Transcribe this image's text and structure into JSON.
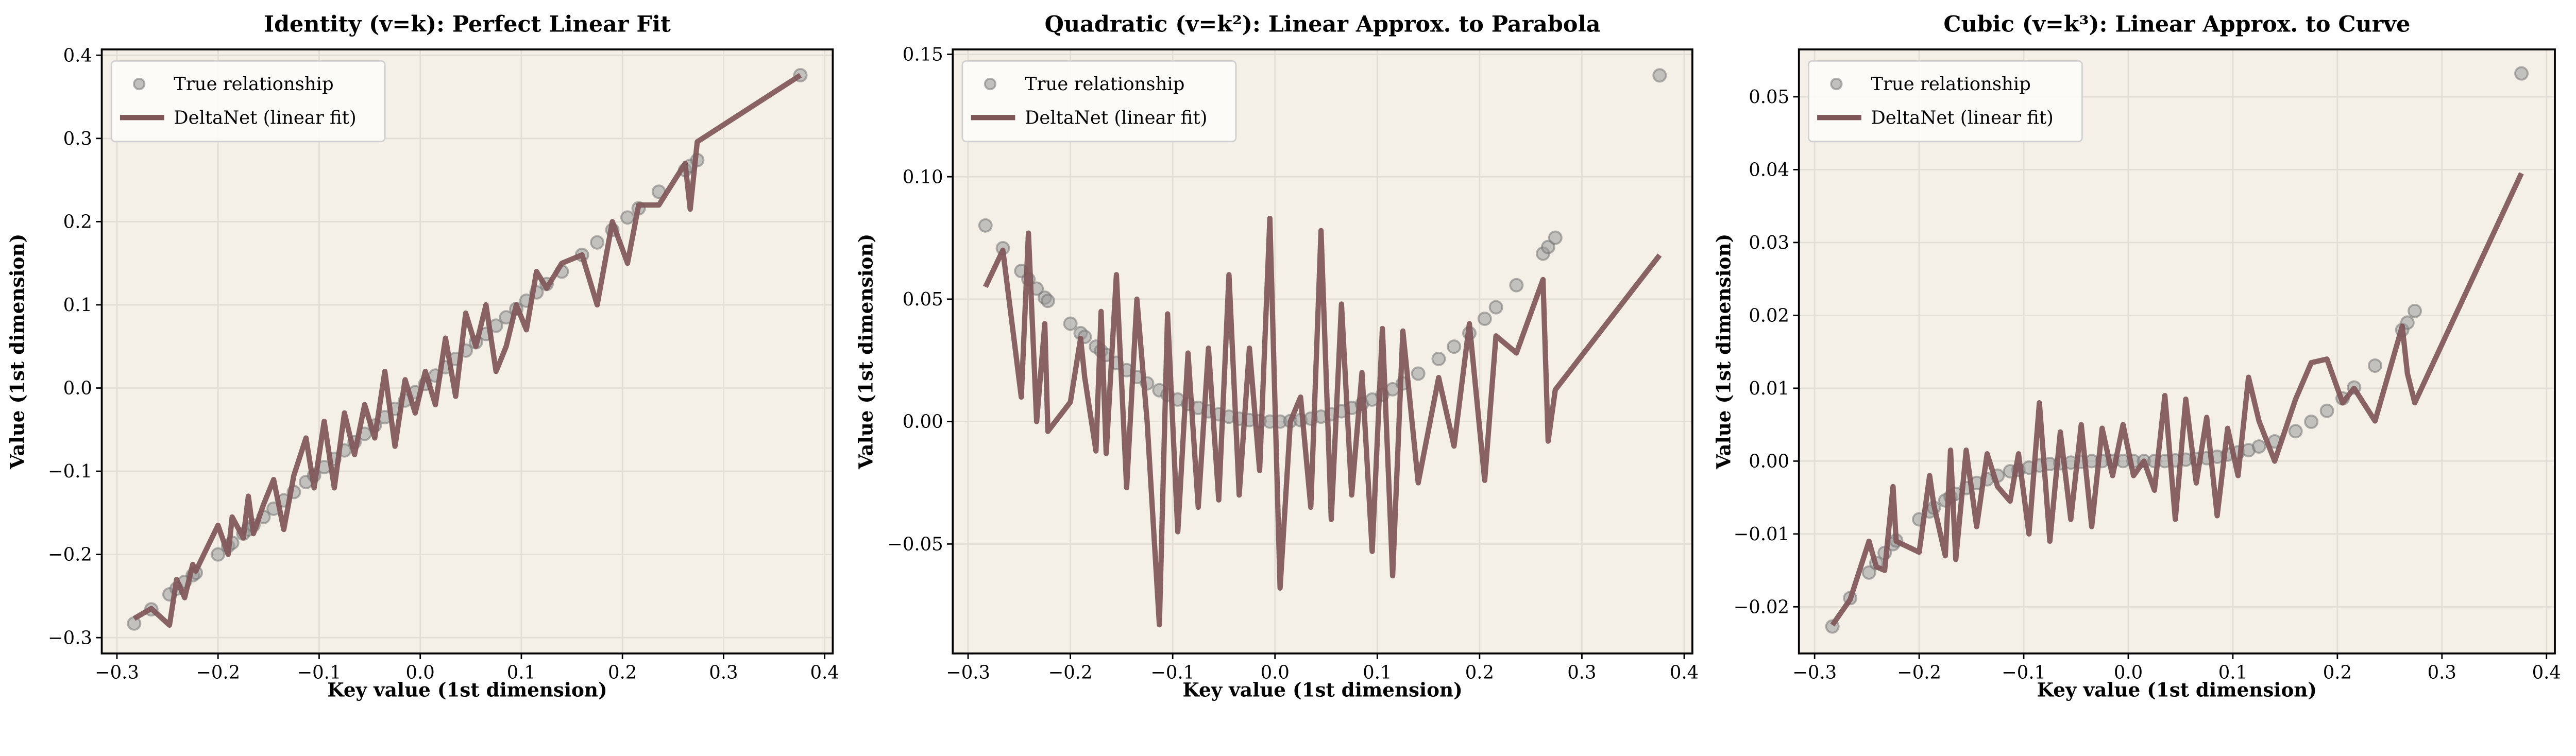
{
  "colors": {
    "line": "#7f5658",
    "points": "#9a9a9a",
    "point_edge": "#6e6e6e",
    "axes_bg": "#f4efe7",
    "grid": "#e2ddd5"
  },
  "legend": {
    "placement": "top-left",
    "scatter_label": "True relationship",
    "line_label": "DeltaNet (linear fit)"
  },
  "chart_data": [
    {
      "type": "line",
      "title": "Identity (v=k): Perfect Linear Fit",
      "xlabel": "Key value (1st dimension)",
      "ylabel": "Value (1st dimension)",
      "xlim": [
        -0.315,
        0.408
      ],
      "ylim": [
        -0.319,
        0.407
      ],
      "grid": true,
      "xticks": [
        -0.3,
        -0.2,
        -0.1,
        0.0,
        0.1,
        0.2,
        0.3,
        0.4
      ],
      "xtick_labels": [
        "−0.3",
        "−0.2",
        "−0.1",
        "0.0",
        "0.1",
        "0.2",
        "0.3",
        "0.4"
      ],
      "yticks": [
        -0.3,
        -0.2,
        -0.1,
        0.0,
        0.1,
        0.2,
        0.3,
        0.4
      ],
      "ytick_labels": [
        "−0.3",
        "−0.2",
        "−0.1",
        "0.0",
        "0.1",
        "0.2",
        "0.3",
        "0.4"
      ],
      "keys": [
        -0.283,
        -0.266,
        -0.248,
        -0.241,
        -0.233,
        -0.225,
        -0.222,
        -0.2,
        -0.19,
        -0.186,
        -0.175,
        -0.17,
        -0.165,
        -0.155,
        -0.145,
        -0.135,
        -0.125,
        -0.113,
        -0.105,
        -0.095,
        -0.085,
        -0.075,
        -0.065,
        -0.055,
        -0.045,
        -0.035,
        -0.025,
        -0.015,
        -0.005,
        0.005,
        0.015,
        0.025,
        0.035,
        0.045,
        0.055,
        0.065,
        0.075,
        0.085,
        0.095,
        0.105,
        0.115,
        0.125,
        0.14,
        0.16,
        0.175,
        0.19,
        0.205,
        0.216,
        0.236,
        0.262,
        0.267,
        0.274,
        0.376
      ],
      "series": [
        {
          "name": "True relationship",
          "kind": "scatter",
          "values": [
            -0.283,
            -0.266,
            -0.248,
            -0.241,
            -0.233,
            -0.225,
            -0.222,
            -0.2,
            -0.19,
            -0.186,
            -0.175,
            -0.17,
            -0.165,
            -0.155,
            -0.145,
            -0.135,
            -0.125,
            -0.113,
            -0.105,
            -0.095,
            -0.085,
            -0.075,
            -0.065,
            -0.055,
            -0.045,
            -0.035,
            -0.025,
            -0.015,
            -0.005,
            0.005,
            0.015,
            0.025,
            0.035,
            0.045,
            0.055,
            0.065,
            0.075,
            0.085,
            0.095,
            0.105,
            0.115,
            0.125,
            0.14,
            0.16,
            0.175,
            0.19,
            0.205,
            0.216,
            0.236,
            0.262,
            0.267,
            0.274,
            0.376
          ]
        },
        {
          "name": "DeltaNet (linear fit)",
          "kind": "line",
          "values": [
            -0.277,
            -0.265,
            -0.285,
            -0.23,
            -0.252,
            -0.212,
            -0.22,
            -0.165,
            -0.2,
            -0.155,
            -0.18,
            -0.13,
            -0.175,
            -0.14,
            -0.11,
            -0.17,
            -0.105,
            -0.06,
            -0.12,
            -0.04,
            -0.12,
            -0.03,
            -0.08,
            -0.02,
            -0.06,
            0.02,
            -0.07,
            0.01,
            -0.03,
            0.02,
            -0.02,
            0.06,
            -0.01,
            0.09,
            0.05,
            0.1,
            0.02,
            0.05,
            0.1,
            0.07,
            0.14,
            0.12,
            0.15,
            0.16,
            0.1,
            0.2,
            0.15,
            0.22,
            0.22,
            0.27,
            0.215,
            0.296,
            0.376
          ]
        }
      ]
    },
    {
      "type": "line",
      "title": "Quadratic (v=k²): Linear Approx. to Parabola",
      "xlabel": "Key value (1st dimension)",
      "ylabel": "Value (1st dimension)",
      "xlim": [
        -0.315,
        0.408
      ],
      "ylim": [
        -0.0947,
        0.152
      ],
      "grid": true,
      "xticks": [
        -0.3,
        -0.2,
        -0.1,
        0.0,
        0.1,
        0.2,
        0.3,
        0.4
      ],
      "xtick_labels": [
        "−0.3",
        "−0.2",
        "−0.1",
        "0.0",
        "0.1",
        "0.2",
        "0.3",
        "0.4"
      ],
      "yticks": [
        -0.05,
        0.0,
        0.05,
        0.1,
        0.15
      ],
      "ytick_labels": [
        "−0.05",
        "0.00",
        "0.05",
        "0.10",
        "0.15"
      ],
      "keys": [
        -0.283,
        -0.266,
        -0.248,
        -0.241,
        -0.233,
        -0.225,
        -0.222,
        -0.2,
        -0.19,
        -0.186,
        -0.175,
        -0.17,
        -0.165,
        -0.155,
        -0.145,
        -0.135,
        -0.125,
        -0.113,
        -0.105,
        -0.095,
        -0.085,
        -0.075,
        -0.065,
        -0.055,
        -0.045,
        -0.035,
        -0.025,
        -0.015,
        -0.005,
        0.005,
        0.015,
        0.025,
        0.035,
        0.045,
        0.055,
        0.065,
        0.075,
        0.085,
        0.095,
        0.105,
        0.115,
        0.125,
        0.14,
        0.16,
        0.175,
        0.19,
        0.205,
        0.216,
        0.236,
        0.262,
        0.267,
        0.274,
        0.376
      ],
      "series": [
        {
          "name": "True relationship",
          "kind": "scatter",
          "values": [
            0.0801,
            0.0708,
            0.0615,
            0.0581,
            0.0543,
            0.0506,
            0.0493,
            0.04,
            0.0361,
            0.0346,
            0.0306,
            0.0289,
            0.0272,
            0.024,
            0.021,
            0.0182,
            0.0156,
            0.0128,
            0.011,
            0.009,
            0.0072,
            0.0056,
            0.0042,
            0.003,
            0.002,
            0.0012,
            0.0006,
            0.0002,
            0.0,
            0.0,
            0.0002,
            0.0006,
            0.0012,
            0.002,
            0.003,
            0.0042,
            0.0056,
            0.0072,
            0.009,
            0.011,
            0.0132,
            0.0156,
            0.0196,
            0.0256,
            0.0306,
            0.0361,
            0.042,
            0.0467,
            0.0557,
            0.0686,
            0.0713,
            0.0751,
            0.1414
          ]
        },
        {
          "name": "DeltaNet (linear fit)",
          "kind": "line",
          "values": [
            0.055,
            0.07,
            0.01,
            0.077,
            0.0,
            0.04,
            -0.004,
            0.008,
            0.034,
            0.018,
            -0.012,
            0.045,
            -0.013,
            0.06,
            -0.027,
            0.05,
            0.0,
            -0.083,
            0.044,
            -0.045,
            0.028,
            -0.035,
            0.03,
            -0.032,
            0.06,
            -0.03,
            0.03,
            -0.02,
            0.083,
            -0.068,
            0.0,
            0.01,
            -0.035,
            0.078,
            -0.04,
            0.048,
            -0.03,
            0.02,
            -0.053,
            0.038,
            -0.063,
            0.037,
            -0.025,
            0.018,
            -0.01,
            0.04,
            -0.024,
            0.035,
            0.028,
            0.058,
            -0.008,
            0.013,
            0.068
          ]
        }
      ]
    },
    {
      "type": "line",
      "title": "Cubic (v=k³): Linear Approx. to Curve",
      "xlabel": "Key value (1st dimension)",
      "ylabel": "Value (1st dimension)",
      "xlim": [
        -0.315,
        0.408
      ],
      "ylim": [
        -0.0264,
        0.0565
      ],
      "grid": true,
      "xticks": [
        -0.3,
        -0.2,
        -0.1,
        0.0,
        0.1,
        0.2,
        0.3,
        0.4
      ],
      "xtick_labels": [
        "−0.3",
        "−0.2",
        "−0.1",
        "0.0",
        "0.1",
        "0.2",
        "0.3",
        "0.4"
      ],
      "yticks": [
        -0.02,
        -0.01,
        0.0,
        0.01,
        0.02,
        0.03,
        0.04,
        0.05
      ],
      "ytick_labels": [
        "−0.02",
        "−0.01",
        "0.00",
        "0.01",
        "0.02",
        "0.03",
        "0.04",
        "0.05"
      ],
      "keys": [
        -0.283,
        -0.266,
        -0.248,
        -0.241,
        -0.233,
        -0.225,
        -0.222,
        -0.2,
        -0.19,
        -0.186,
        -0.175,
        -0.17,
        -0.165,
        -0.155,
        -0.145,
        -0.135,
        -0.125,
        -0.113,
        -0.105,
        -0.095,
        -0.085,
        -0.075,
        -0.065,
        -0.055,
        -0.045,
        -0.035,
        -0.025,
        -0.015,
        -0.005,
        0.005,
        0.015,
        0.025,
        0.035,
        0.045,
        0.055,
        0.065,
        0.075,
        0.085,
        0.095,
        0.105,
        0.115,
        0.125,
        0.14,
        0.16,
        0.175,
        0.19,
        0.205,
        0.216,
        0.236,
        0.262,
        0.267,
        0.274,
        0.376
      ],
      "series": [
        {
          "name": "True relationship",
          "kind": "scatter",
          "values": [
            -0.0227,
            -0.0188,
            -0.0153,
            -0.014,
            -0.0126,
            -0.0114,
            -0.0109,
            -0.008,
            -0.0069,
            -0.0064,
            -0.0054,
            -0.0049,
            -0.0045,
            -0.0037,
            -0.003,
            -0.0025,
            -0.002,
            -0.0014,
            -0.0012,
            -0.0009,
            -0.0006,
            -0.0004,
            -0.0003,
            -0.0002,
            -0.0001,
            0,
            0,
            0,
            0,
            0,
            0,
            0,
            0,
            0.0001,
            0.0002,
            0.0003,
            0.0004,
            0.0006,
            0.0009,
            0.0012,
            0.0015,
            0.002,
            0.0027,
            0.0041,
            0.0054,
            0.0069,
            0.0086,
            0.0101,
            0.0131,
            0.018,
            0.019,
            0.0206,
            0.0532
          ]
        },
        {
          "name": "DeltaNet (linear fit)",
          "kind": "line",
          "values": [
            -0.0225,
            -0.019,
            -0.011,
            -0.0145,
            -0.015,
            -0.0035,
            -0.011,
            -0.0125,
            -0.002,
            -0.006,
            -0.013,
            0.0015,
            -0.0135,
            0.0015,
            -0.009,
            0.001,
            -0.0035,
            -0.0055,
            0.001,
            -0.01,
            0.008,
            -0.011,
            0.004,
            -0.008,
            0.005,
            -0.009,
            0.0045,
            -0.002,
            0.005,
            -0.002,
            0.0,
            -0.004,
            0.009,
            -0.008,
            0.0085,
            -0.003,
            0.006,
            -0.0075,
            0.0045,
            -0.002,
            0.0115,
            0.0055,
            0.0,
            0.0085,
            0.0135,
            0.014,
            0.008,
            0.01,
            0.0055,
            0.0185,
            0.012,
            0.008,
            0.0395
          ]
        }
      ]
    }
  ]
}
